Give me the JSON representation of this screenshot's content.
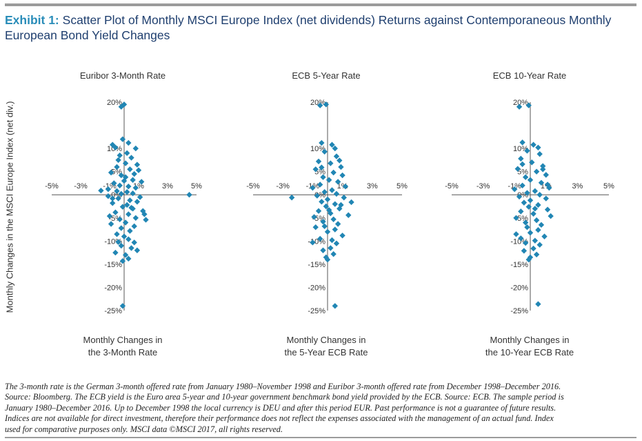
{
  "exhibit_label": "Exhibit 1:",
  "title": "Scatter Plot of Monthly MSCI Europe Index (net dividends) Returns against Contemporaneous Monthly European Bond Yield Changes",
  "ylabel": "Monthly Changes in the MSCI Europe Index (net div.)",
  "footnote": [
    "The 3-month rate is the German 3-month offered rate from January 1980–November 1998 and Euribor 3-month offered rate from December 1998–December 2016.",
    "Source: Bloomberg. The ECB yield is the Euro area 5-year and 10-year government benchmark bond yield provided by the ECB. Source: ECB. The sample period is",
    "January 1980–December 2016. Up to December 1998 the local currency is DEU and after this period EUR. Past performance is not a guarantee of future results.",
    "Indices are not available for direct investment, therefore their performance does not reflect the expenses associated with the management of an actual fund. Index",
    "used for comparative purposes only. MSCI data ©MSCI 2017, all rights reserved."
  ],
  "colors": {
    "marker": "#2186b4",
    "title": "#1f3f6f",
    "accent": "#2a8db9",
    "rule": "#9b9b9b"
  },
  "chart_data": [
    {
      "type": "scatter",
      "title": "Euribor 3-Month Rate",
      "xlabel": [
        "Monthly Changes in",
        "the 3-Month Rate"
      ],
      "ylabel": "Monthly Changes in the MSCI Europe Index (net div.)",
      "xlim": [
        -5,
        5
      ],
      "ylim": [
        -25,
        20
      ],
      "x_ticks": [
        "-5%",
        "-3%",
        "-1%",
        "1%",
        "3%",
        "5%"
      ],
      "y_ticks": [
        "20%",
        "10%",
        "5%",
        "0%",
        "-5%",
        "-10%",
        "-15%",
        "-20%",
        "-25%"
      ],
      "grid": false,
      "legend": "none",
      "points": [
        [
          0.0,
          19.5
        ],
        [
          -0.2,
          19.0
        ],
        [
          -0.8,
          10.8
        ],
        [
          -0.6,
          10.2
        ],
        [
          0.8,
          10.0
        ],
        [
          0.3,
          11.2
        ],
        [
          -0.1,
          12.0
        ],
        [
          0.2,
          9.0
        ],
        [
          -0.3,
          8.5
        ],
        [
          0.5,
          8.0
        ],
        [
          0.9,
          6.5
        ],
        [
          -0.5,
          6.0
        ],
        [
          1.0,
          5.3
        ],
        [
          -0.9,
          4.8
        ],
        [
          0.4,
          5.5
        ],
        [
          -0.2,
          4.2
        ],
        [
          0.1,
          3.8
        ],
        [
          0.6,
          3.2
        ],
        [
          1.2,
          2.8
        ],
        [
          -0.7,
          2.5
        ],
        [
          -0.3,
          2.0
        ],
        [
          0.3,
          1.8
        ],
        [
          0.8,
          1.5
        ],
        [
          -1.1,
          1.2
        ],
        [
          -0.5,
          0.8
        ],
        [
          0.2,
          0.6
        ],
        [
          0.6,
          0.3
        ],
        [
          -0.2,
          0.2
        ],
        [
          -1.6,
          0.9
        ],
        [
          -1.1,
          -0.3
        ],
        [
          1.1,
          -0.5
        ],
        [
          -0.4,
          -0.8
        ],
        [
          0.4,
          -1.2
        ],
        [
          0.9,
          -1.5
        ],
        [
          -0.8,
          -1.8
        ],
        [
          0.2,
          -2.2
        ],
        [
          -0.1,
          -2.6
        ],
        [
          0.6,
          -3.0
        ],
        [
          1.3,
          -3.5
        ],
        [
          -0.6,
          -3.8
        ],
        [
          0.3,
          -4.2
        ],
        [
          -1.0,
          -4.6
        ],
        [
          0.8,
          -5.0
        ],
        [
          -0.3,
          -5.3
        ],
        [
          1.4,
          -4.2
        ],
        [
          1.5,
          -5.4
        ],
        [
          0.1,
          -6.0
        ],
        [
          -0.9,
          -6.3
        ],
        [
          0.7,
          -6.8
        ],
        [
          -0.2,
          -7.2
        ],
        [
          0.4,
          -7.8
        ],
        [
          -0.5,
          -8.5
        ],
        [
          0.0,
          -9.0
        ],
        [
          0.3,
          -9.6
        ],
        [
          -0.4,
          -10.2
        ],
        [
          0.7,
          -10.3
        ],
        [
          -0.2,
          -11.0
        ],
        [
          0.5,
          -11.5
        ],
        [
          0.9,
          -12.0
        ],
        [
          -0.6,
          -12.5
        ],
        [
          0.1,
          -13.0
        ],
        [
          0.3,
          -13.8
        ],
        [
          -0.1,
          -14.3
        ],
        [
          -0.1,
          -24.0
        ],
        [
          4.5,
          0.0
        ],
        [
          0.1,
          6.8
        ],
        [
          -0.4,
          7.5
        ],
        [
          0.7,
          4.5
        ],
        [
          0.0,
          3.0
        ],
        [
          -0.8,
          -0.8
        ],
        [
          0.5,
          -2.8
        ]
      ]
    },
    {
      "type": "scatter",
      "title": "ECB 5-Year Rate",
      "xlabel": [
        "Monthly Changes in",
        "the 5-Year ECB Rate"
      ],
      "ylabel": "Monthly Changes in the MSCI Europe Index (net div.)",
      "xlim": [
        -5,
        5
      ],
      "ylim": [
        -25,
        20
      ],
      "x_ticks": [
        "-5%",
        "-3%",
        "-1%",
        "1%",
        "3%",
        "5%"
      ],
      "y_ticks": [
        "20%",
        "10%",
        "5%",
        "0%",
        "-5%",
        "-10%",
        "-15%",
        "-20%",
        "-25%"
      ],
      "grid": false,
      "legend": "none",
      "points": [
        [
          -0.5,
          19.3
        ],
        [
          -0.1,
          19.5
        ],
        [
          -0.4,
          11.2
        ],
        [
          0.3,
          10.8
        ],
        [
          0.5,
          10.0
        ],
        [
          -0.2,
          9.3
        ],
        [
          0.6,
          8.3
        ],
        [
          -0.6,
          7.2
        ],
        [
          0.2,
          6.8
        ],
        [
          0.9,
          6.0
        ],
        [
          -0.8,
          5.5
        ],
        [
          0.4,
          4.8
        ],
        [
          1.0,
          4.2
        ],
        [
          -0.3,
          3.8
        ],
        [
          0.1,
          3.2
        ],
        [
          0.7,
          2.8
        ],
        [
          -0.5,
          2.2
        ],
        [
          1.2,
          1.8
        ],
        [
          -1.0,
          1.5
        ],
        [
          0.3,
          1.0
        ],
        [
          -0.2,
          0.6
        ],
        [
          0.6,
          0.2
        ],
        [
          -0.7,
          -0.2
        ],
        [
          1.1,
          -0.6
        ],
        [
          0.0,
          -1.0
        ],
        [
          -0.4,
          -1.5
        ],
        [
          0.5,
          -2.0
        ],
        [
          -0.1,
          -2.5
        ],
        [
          0.8,
          -3.0
        ],
        [
          -0.6,
          -3.5
        ],
        [
          0.2,
          -4.0
        ],
        [
          1.4,
          -4.4
        ],
        [
          -0.9,
          -4.8
        ],
        [
          0.4,
          -5.3
        ],
        [
          -0.3,
          -5.8
        ],
        [
          0.7,
          -6.3
        ],
        [
          -0.2,
          -6.8
        ],
        [
          0.5,
          -7.5
        ],
        [
          0.0,
          -8.0
        ],
        [
          1.0,
          -8.8
        ],
        [
          -0.5,
          -9.5
        ],
        [
          0.3,
          -9.8
        ],
        [
          -1.0,
          -10.3
        ],
        [
          0.6,
          -10.5
        ],
        [
          0.2,
          -11.5
        ],
        [
          -0.3,
          -12.0
        ],
        [
          0.4,
          -12.8
        ],
        [
          -0.1,
          -13.5
        ],
        [
          0.0,
          -14.0
        ],
        [
          1.6,
          -1.6
        ],
        [
          -2.4,
          -0.6
        ],
        [
          0.5,
          -24.0
        ],
        [
          0.9,
          -2.2
        ],
        [
          -0.4,
          5.9
        ],
        [
          0.8,
          7.4
        ],
        [
          0.1,
          -3.3
        ],
        [
          -0.8,
          -7.0
        ]
      ]
    },
    {
      "type": "scatter",
      "title": "ECB 10-Year Rate",
      "xlabel": [
        "Monthly Changes in",
        "the 10-Year ECB Rate"
      ],
      "ylabel": "Monthly Changes in the MSCI Europe Index (net div.)",
      "xlim": [
        -5,
        5
      ],
      "ylim": [
        -25,
        20
      ],
      "x_ticks": [
        "-5%",
        "-3%",
        "-1%",
        "1%",
        "3%",
        "5%"
      ],
      "y_ticks": [
        "20%",
        "10%",
        "5%",
        "0%",
        "-5%",
        "-10%",
        "-15%",
        "-20%",
        "-25%"
      ],
      "grid": false,
      "legend": "none",
      "points": [
        [
          -0.7,
          19.0
        ],
        [
          -0.1,
          19.3
        ],
        [
          -0.5,
          11.3
        ],
        [
          0.2,
          10.8
        ],
        [
          0.5,
          10.2
        ],
        [
          -0.2,
          9.5
        ],
        [
          0.6,
          8.8
        ],
        [
          -0.6,
          7.8
        ],
        [
          0.1,
          7.0
        ],
        [
          0.8,
          6.2
        ],
        [
          -0.8,
          5.6
        ],
        [
          0.4,
          5.0
        ],
        [
          1.0,
          4.3
        ],
        [
          -0.3,
          3.8
        ],
        [
          0.0,
          3.2
        ],
        [
          0.7,
          2.6
        ],
        [
          -0.5,
          2.0
        ],
        [
          1.2,
          1.5
        ],
        [
          -1.0,
          1.2
        ],
        [
          0.3,
          0.8
        ],
        [
          -0.2,
          0.4
        ],
        [
          0.6,
          0.0
        ],
        [
          -0.7,
          -0.4
        ],
        [
          1.0,
          -0.8
        ],
        [
          0.0,
          -1.2
        ],
        [
          -0.4,
          -1.7
        ],
        [
          0.5,
          -2.2
        ],
        [
          -0.1,
          -2.6
        ],
        [
          1.1,
          -3.2
        ],
        [
          -0.6,
          -3.6
        ],
        [
          0.2,
          -4.1
        ],
        [
          1.3,
          -4.6
        ],
        [
          -0.9,
          -5.0
        ],
        [
          0.4,
          -5.5
        ],
        [
          -0.3,
          -6.0
        ],
        [
          0.7,
          -6.5
        ],
        [
          -0.2,
          -7.0
        ],
        [
          0.5,
          -7.6
        ],
        [
          0.0,
          -8.2
        ],
        [
          0.9,
          -9.0
        ],
        [
          -0.6,
          -9.4
        ],
        [
          0.3,
          -9.9
        ],
        [
          -0.3,
          -10.4
        ],
        [
          0.6,
          -10.8
        ],
        [
          0.2,
          -11.6
        ],
        [
          -0.4,
          -12.1
        ],
        [
          0.4,
          -12.9
        ],
        [
          0.0,
          -13.5
        ],
        [
          -0.1,
          -14.0
        ],
        [
          0.5,
          -23.6
        ],
        [
          0.8,
          5.5
        ],
        [
          -0.5,
          6.6
        ],
        [
          0.3,
          -3.0
        ],
        [
          -0.9,
          -8.5
        ],
        [
          1.1,
          2.2
        ]
      ]
    }
  ]
}
